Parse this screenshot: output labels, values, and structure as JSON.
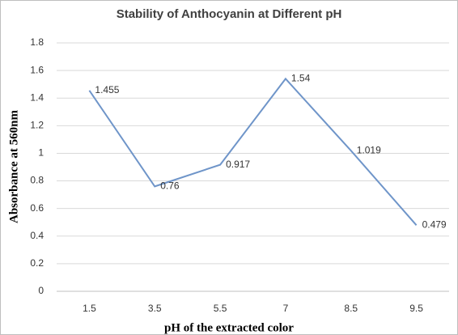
{
  "chart_data": {
    "type": "line",
    "title": "Stability of Anthocyanin at Different pH",
    "x_label": "pH of the extracted color",
    "y_label": "Absorbance at 560nm",
    "categories": [
      "1.5",
      "3.5",
      "5.5",
      "7",
      "8.5",
      "9.5"
    ],
    "series": [
      {
        "color": "#6f95c9",
        "values": [
          1.455,
          0.76,
          0.917,
          1.54,
          1.019,
          0.479
        ]
      }
    ],
    "ylim": [
      0,
      1.8
    ],
    "yticks": [
      0,
      0.2,
      0.4,
      0.6,
      0.8,
      1,
      1.2,
      1.4,
      1.6,
      1.8
    ],
    "grid": true
  }
}
